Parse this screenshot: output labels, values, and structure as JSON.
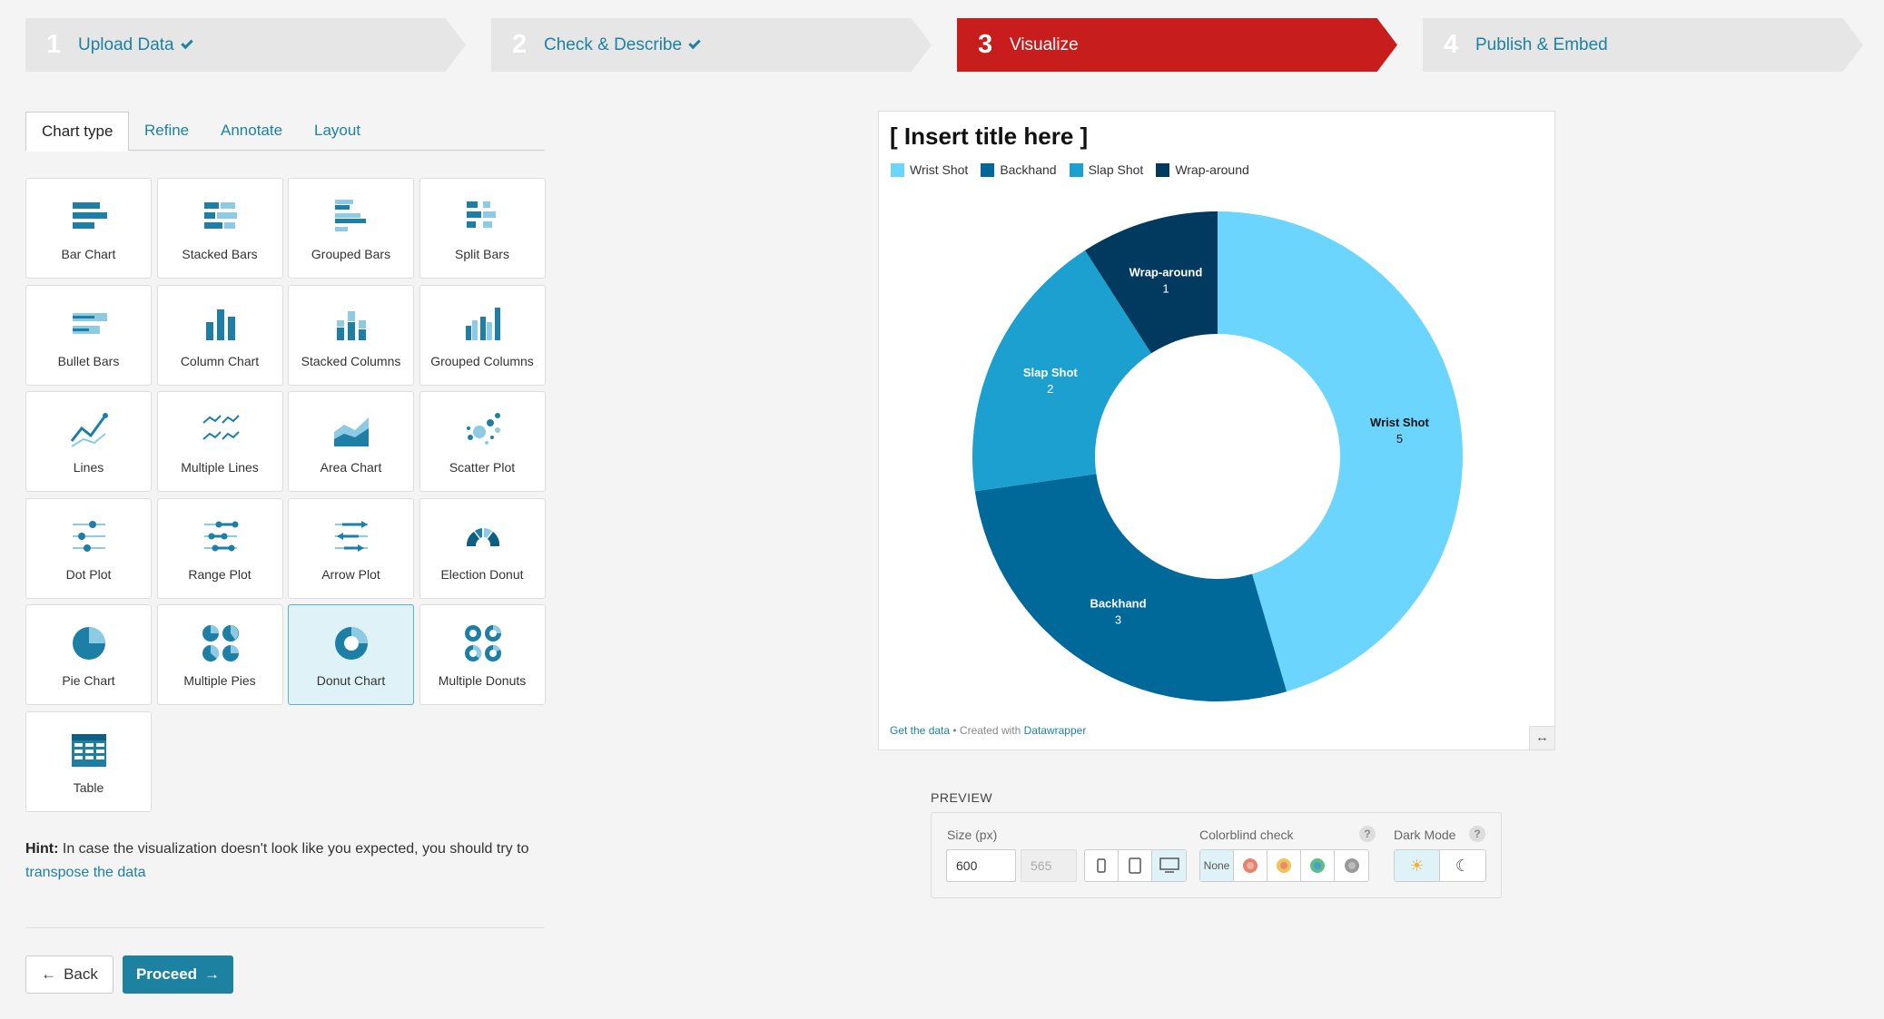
{
  "steps": [
    {
      "num": "1",
      "label": "Upload Data",
      "done": true
    },
    {
      "num": "2",
      "label": "Check & Describe",
      "done": true
    },
    {
      "num": "3",
      "label": "Visualize",
      "active": true
    },
    {
      "num": "4",
      "label": "Publish & Embed"
    }
  ],
  "tabs": [
    "Chart type",
    "Refine",
    "Annotate",
    "Layout"
  ],
  "chart_types": [
    "Bar Chart",
    "Stacked Bars",
    "Grouped Bars",
    "Split Bars",
    "Bullet Bars",
    "Column Chart",
    "Stacked Columns",
    "Grouped Columns",
    "Lines",
    "Multiple Lines",
    "Area Chart",
    "Scatter Plot",
    "Dot Plot",
    "Range Plot",
    "Arrow Plot",
    "Election Donut",
    "Pie Chart",
    "Multiple Pies",
    "Donut Chart",
    "Multiple Donuts",
    "Table"
  ],
  "selected_chart_type": "Donut Chart",
  "hint": {
    "bold": "Hint:",
    "text": " In case the visualization doesn't look like you expected, you should try to ",
    "link": "transpose the data"
  },
  "buttons": {
    "back": "Back",
    "proceed": "Proceed"
  },
  "chart_data": {
    "type": "pie",
    "title": "[ Insert title here ]",
    "categories": [
      "Wrist Shot",
      "Backhand",
      "Slap Shot",
      "Wrap-around"
    ],
    "values": [
      5,
      3,
      2,
      1
    ],
    "colors": [
      "#6bd5fd",
      "#01689a",
      "#1ba0cf",
      "#013a5e"
    ],
    "label_colors": [
      "#111111",
      "#ffffff",
      "#ffffff",
      "#ffffff"
    ],
    "legend_placement": "top-left",
    "donut": true
  },
  "footer": {
    "get_data": "Get the data",
    "created": " • Created with ",
    "brand": "Datawrapper"
  },
  "preview": {
    "title": "PREVIEW",
    "size_label": "Size (px)",
    "width": "600",
    "height": "565",
    "colorblind_label": "Colorblind check",
    "colorblind_none": "None",
    "darkmode_label": "Dark Mode",
    "help": "?"
  },
  "icons": {
    "resize": "↔",
    "back": "←",
    "proceed": "→",
    "sun": "☀",
    "moon": "☾"
  }
}
